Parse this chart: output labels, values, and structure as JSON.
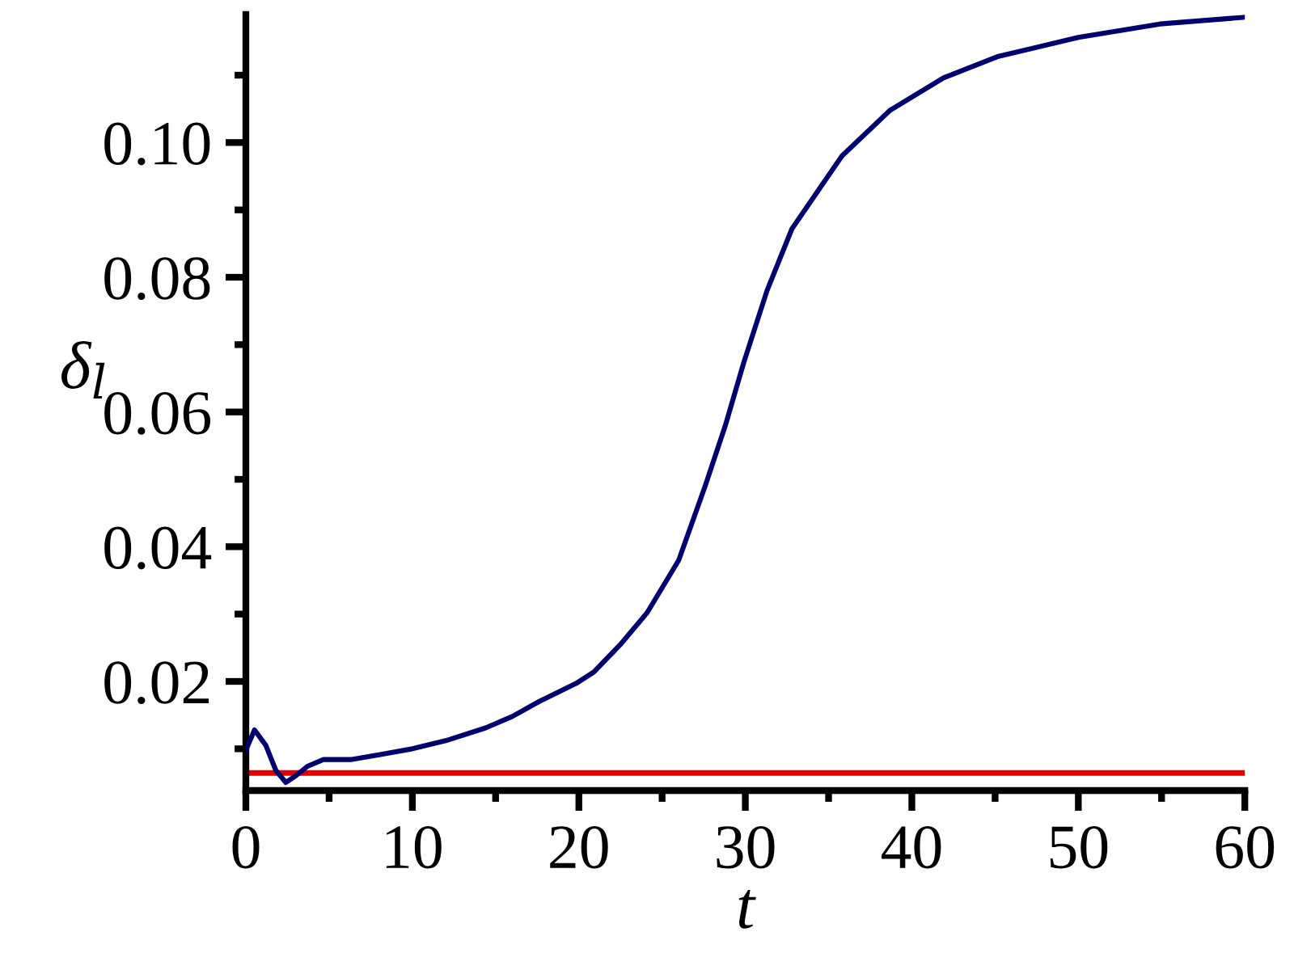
{
  "chart_data": {
    "type": "line",
    "xlabel": "t",
    "ylabel": "δ$_{l}$",
    "xlim": [
      0,
      60
    ],
    "ylim": [
      0.0038,
      0.119
    ],
    "xticks": [
      0,
      10,
      20,
      30,
      40,
      50,
      60
    ],
    "yticks": [
      {
        "value": 0.02,
        "label": "0.02"
      },
      {
        "value": 0.04,
        "label": "0.04"
      },
      {
        "value": 0.06,
        "label": "0.06"
      },
      {
        "value": 0.08,
        "label": "0.08"
      },
      {
        "value": 0.1,
        "label": "0.10"
      }
    ],
    "grid": false,
    "series": [
      {
        "color": "#00006e",
        "x": [
          0,
          0.52,
          1.2,
          1.8,
          2.4,
          3.0,
          3.7,
          4.66,
          6.3,
          8,
          10,
          12,
          14.4,
          16,
          17.6,
          19.9,
          20.9,
          22.5,
          24.1,
          26,
          27.6,
          28.8,
          29.9,
          31.3,
          32.8,
          35.8,
          38.7,
          41.9,
          45.2,
          50,
          54.9,
          60
        ],
        "values": [
          0.0098,
          0.0128,
          0.0105,
          0.0068,
          0.005,
          0.006,
          0.0074,
          0.0084,
          0.0084,
          0.0091,
          0.01,
          0.0112,
          0.0131,
          0.0148,
          0.017,
          0.0198,
          0.0214,
          0.0255,
          0.0302,
          0.038,
          0.0491,
          0.058,
          0.0673,
          0.078,
          0.0872,
          0.098,
          0.1048,
          0.1096,
          0.1128,
          0.1156,
          0.1176,
          0.1186
        ]
      }
    ],
    "ref_lines": [
      {
        "axis": "y",
        "value": 0.0064,
        "color": "#e00000"
      }
    ]
  }
}
